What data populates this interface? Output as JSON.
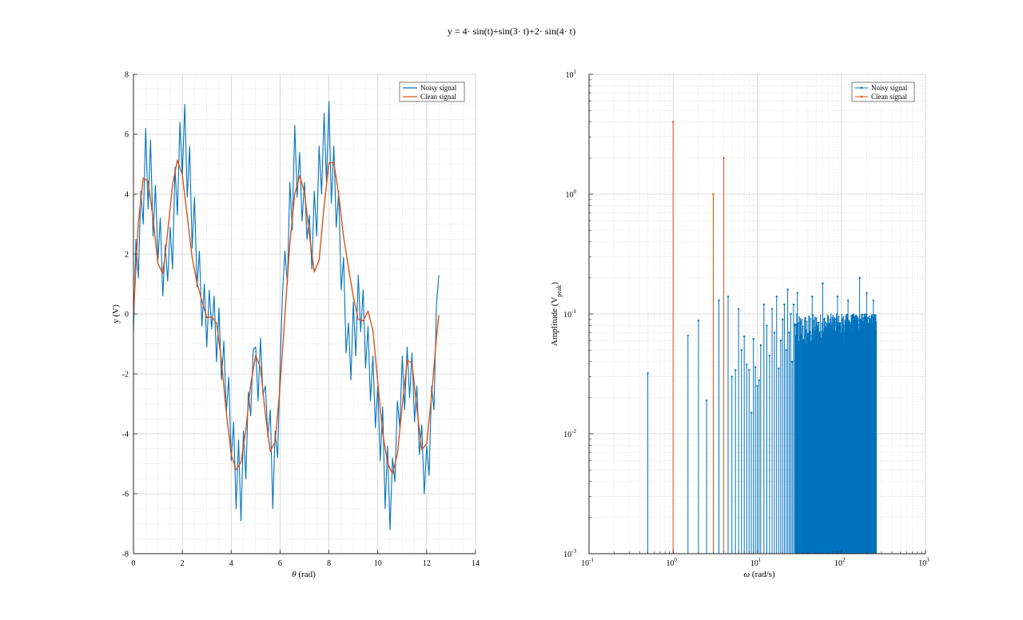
{
  "figure": {
    "title": "y = 4· sin(t)+sin(3· t)+2· sin(4· t)"
  },
  "chart_data": [
    {
      "type": "line",
      "xlabel_symbol": "θ",
      "xlabel_unit": " (rad)",
      "ylabel": "y (V)",
      "xlim": [
        0,
        14
      ],
      "ylim": [
        -8,
        8
      ],
      "xticks": [
        0,
        2,
        4,
        6,
        8,
        10,
        12,
        14
      ],
      "yticks": [
        -8,
        -6,
        -4,
        -2,
        0,
        2,
        4,
        6,
        8
      ],
      "grid": true,
      "minor_grid": true,
      "legend_position": "top-right",
      "series": [
        {
          "name": "Noisy signal",
          "color": "#0072BD",
          "x": [
            0,
            0.1,
            0.2,
            0.3,
            0.4,
            0.5,
            0.6,
            0.7,
            0.8,
            0.9,
            1,
            1.1,
            1.2,
            1.3,
            1.4,
            1.5,
            1.6,
            1.7,
            1.8,
            1.9,
            2,
            2.1,
            2.2,
            2.3,
            2.4,
            2.5,
            2.6,
            2.7,
            2.8,
            2.9,
            3,
            3.1,
            3.2,
            3.3,
            3.4,
            3.5,
            3.6,
            3.7,
            3.8,
            3.9,
            4,
            4.1,
            4.2,
            4.3,
            4.4,
            4.5,
            4.6,
            4.7,
            4.8,
            4.9,
            5,
            5.1,
            5.2,
            5.3,
            5.4,
            5.5,
            5.6,
            5.7,
            5.8,
            5.9,
            6,
            6.1,
            6.2,
            6.3,
            6.4,
            6.5,
            6.6,
            6.7,
            6.8,
            6.9,
            7,
            7.1,
            7.2,
            7.3,
            7.4,
            7.5,
            7.6,
            7.7,
            7.8,
            7.9,
            8,
            8.1,
            8.2,
            8.3,
            8.4,
            8.5,
            8.6,
            8.7,
            8.8,
            8.9,
            9,
            9.1,
            9.2,
            9.3,
            9.4,
            9.5,
            9.6,
            9.7,
            9.8,
            9.9,
            10,
            10.1,
            10.2,
            10.3,
            10.4,
            10.5,
            10.6,
            10.7,
            10.8,
            10.9,
            11,
            11.1,
            11.2,
            11.3,
            11.4,
            11.5,
            11.6,
            11.7,
            11.8,
            11.9,
            12,
            12.1,
            12.2,
            12.3,
            12.4,
            12.5
          ],
          "y": [
            -0.6,
            2.5,
            1.2,
            4.1,
            3,
            6.2,
            3.5,
            5.8,
            2.6,
            4.3,
            1.8,
            3.2,
            0.6,
            2.3,
            1.1,
            2.9,
            1.5,
            4.9,
            3.3,
            6.4,
            4.6,
            7,
            3.9,
            5.6,
            2.2,
            3.9,
            0.9,
            2.1,
            -0.4,
            1.0,
            -1.1,
            0.8,
            -0.5,
            0.6,
            -1.6,
            0.2,
            -2.2,
            -0.9,
            -3.3,
            -2.1,
            -4.9,
            -3.6,
            -6.5,
            -4.2,
            -6.9,
            -3.9,
            -5.5,
            -2.6,
            -3.4,
            -1.2,
            -1.1,
            -2.9,
            -0.8,
            -2.7,
            -2.4,
            -4.1,
            -3.2,
            -6.5,
            -3.9,
            -4.8,
            -1.8,
            0.7,
            2.1,
            1.0,
            4.4,
            2.8,
            6.3,
            3.9,
            5.4,
            3.1,
            4.4,
            2.5,
            3.3,
            1.5,
            4.1,
            2.6,
            5.6,
            4.0,
            6.7,
            4.4,
            7.1,
            3.7,
            5.6,
            2.9,
            4.1,
            0.8,
            1.9,
            -1.3,
            -0.3,
            -2.2,
            0.4,
            -1.4,
            1.3,
            -0.6,
            0.8,
            -1.8,
            -0.4,
            -2.9,
            -1.4,
            -3.8,
            -2.4,
            -4.9,
            -3.1,
            -6.5,
            -4.4,
            -7.2,
            -4.8,
            -5.6,
            -2.9,
            -3.8,
            -1.4,
            -3.2,
            -1.1,
            -2.8,
            -1.3,
            -3.6,
            -2.4,
            -4.7,
            -3.7,
            -6.0,
            -4.4,
            -5.4,
            -2.4,
            -3.2,
            0.3,
            1.3
          ]
        },
        {
          "name": "Clean signal",
          "color": "#D95319",
          "x": [
            0,
            0.2,
            0.4,
            0.6,
            0.8,
            1,
            1.2,
            1.4,
            1.6,
            1.8,
            2,
            2.2,
            2.4,
            2.6,
            2.8,
            3,
            3.2,
            3.4,
            3.6,
            3.8,
            4,
            4.2,
            4.4,
            4.6,
            4.8,
            5,
            5.2,
            5.4,
            5.6,
            5.8,
            6,
            6.2,
            6.4,
            6.6,
            6.8,
            7,
            7.2,
            7.4,
            7.6,
            7.8,
            8,
            8.2,
            8.4,
            8.6,
            8.8,
            9,
            9.2,
            9.4,
            9.6,
            9.8,
            10,
            10.2,
            10.4,
            10.6,
            10.8,
            11,
            11.2,
            11.4,
            11.6,
            11.8,
            12,
            12.2,
            12.4,
            12.5
          ],
          "y": [
            0,
            3.05,
            4.54,
            4.43,
            3.19,
            1.68,
            1.36,
            2.73,
            4.31,
            5.14,
            4.64,
            3.26,
            1.89,
            1.03,
            0.44,
            -0.12,
            -0.09,
            -0.3,
            -1.55,
            -3.31,
            -4.69,
            -5.2,
            -4.95,
            -3.86,
            -2.34,
            -1.38,
            -1.8,
            -3.37,
            -4.59,
            -4.25,
            -2.42,
            -0.04,
            2.36,
            4.01,
            4.61,
            4.06,
            2.64,
            1.4,
            1.8,
            3.59,
            5.04,
            5.06,
            3.98,
            2.58,
            1.55,
            0.57,
            -0.18,
            -0.23,
            0.1,
            -0.54,
            -2.28,
            -3.96,
            -4.98,
            -5.33,
            -4.68,
            -3.07,
            -1.55,
            -1.63,
            -3.16,
            -4.53,
            -4.33,
            -2.73,
            -0.79,
            -0.04
          ]
        }
      ]
    },
    {
      "type": "stem",
      "xlabel_symbol": "ω",
      "xlabel_unit": " (rad/s)",
      "ylabel_main": "Amplitude (V",
      "ylabel_sub": "peak",
      "ylabel_end": ")",
      "xscale": "log",
      "yscale": "log",
      "xlim": [
        0.1,
        1000
      ],
      "ylim": [
        0.001,
        10
      ],
      "xtick_exponents": [
        -1,
        0,
        1,
        2,
        3
      ],
      "ytick_exponents": [
        -3,
        -2,
        -1,
        0,
        1
      ],
      "tick_base": "10",
      "grid": true,
      "minor_grid": true,
      "legend_position": "top-right",
      "series": [
        {
          "name": "Noisy signal",
          "color": "#0072BD",
          "x": [
            0.5,
            1.5,
            2,
            2.5,
            3.5,
            4.5,
            5,
            5.5,
            6,
            6.5,
            7,
            7.5,
            8,
            8.5,
            9,
            9.5,
            10,
            10.5,
            11,
            12,
            13,
            14,
            15,
            16,
            17,
            18,
            19,
            20,
            21,
            22,
            23,
            24,
            25,
            26,
            27,
            28
          ],
          "y": [
            0.032,
            0.066,
            0.088,
            0.019,
            0.13,
            0.14,
            0.03,
            0.034,
            0.11,
            0.05,
            0.065,
            0.038,
            0.034,
            0.015,
            0.062,
            0.036,
            0.025,
            0.028,
            0.055,
            0.12,
            0.08,
            0.045,
            0.11,
            0.07,
            0.14,
            0.035,
            0.06,
            0.09,
            0.12,
            0.05,
            0.16,
            0.07,
            0.1,
            0.04,
            0.12,
            0.08
          ],
          "dense_region": {
            "x_start": 28,
            "x_end": 260,
            "y_low": 0.05,
            "y_high": 0.1
          },
          "dense_peaks": [
            {
              "x": 30,
              "y": 0.15
            },
            {
              "x": 45,
              "y": 0.14
            },
            {
              "x": 60,
              "y": 0.18
            },
            {
              "x": 90,
              "y": 0.14
            },
            {
              "x": 120,
              "y": 0.13
            },
            {
              "x": 165,
              "y": 0.2
            },
            {
              "x": 200,
              "y": 0.15
            },
            {
              "x": 240,
              "y": 0.13
            }
          ]
        },
        {
          "name": "Clean signal",
          "color": "#D95319",
          "x": [
            1,
            3,
            4
          ],
          "y": [
            4,
            1,
            2
          ]
        }
      ]
    }
  ]
}
